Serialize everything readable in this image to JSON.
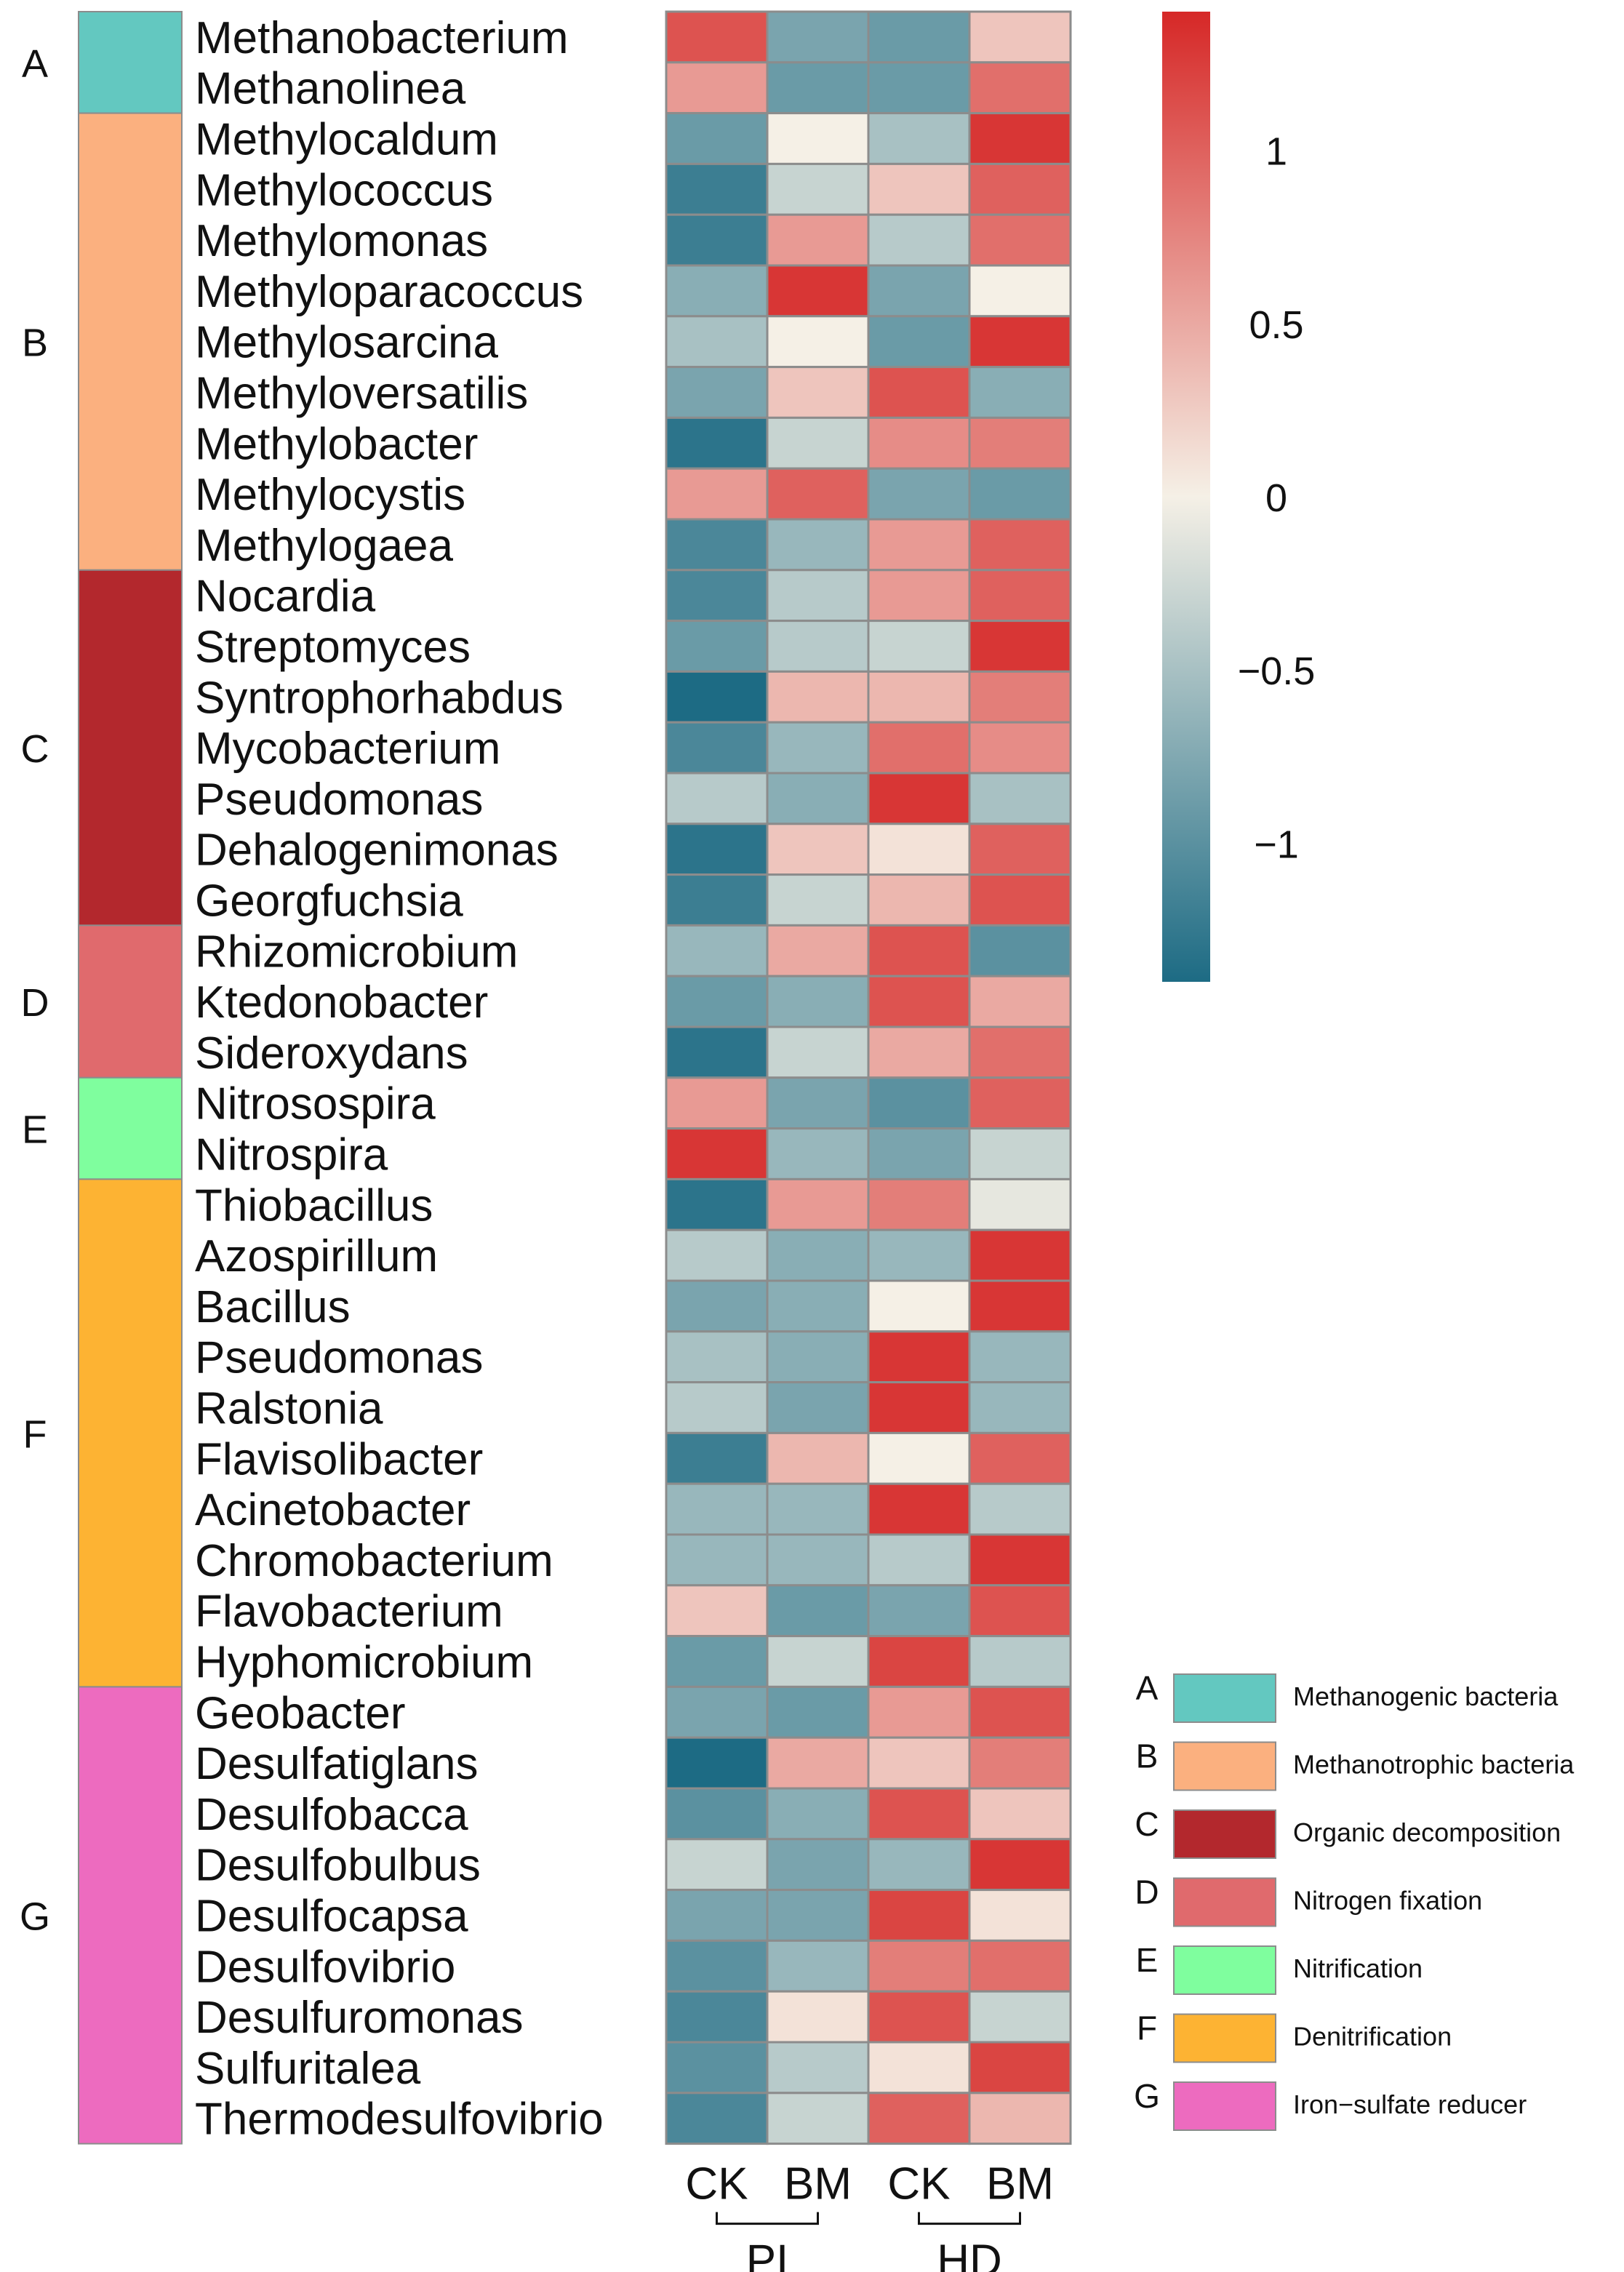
{
  "colors": {
    "low": "#1d6b84",
    "mid": "#f5f0e6",
    "high": "#d62827",
    "grid": "#8c8c8c"
  },
  "chart_data": {
    "type": "heatmap",
    "title": "",
    "columns": [
      "CK",
      "BM",
      "CK",
      "BM"
    ],
    "column_groups": [
      {
        "label": "PI",
        "columns": [
          0,
          1
        ]
      },
      {
        "label": "HD",
        "columns": [
          2,
          3
        ]
      }
    ],
    "rows": [
      "Methanobacterium",
      "Methanolinea",
      "Methylocaldum",
      "Methylococcus",
      "Methylomonas",
      "Methyloparacoccus",
      "Methylosarcina",
      "Methyloversatilis",
      "Methylobacter",
      "Methylocystis",
      "Methylogaea",
      "Nocardia",
      "Streptomyces",
      "Syntrophorhabdus",
      "Mycobacterium",
      "Pseudomonas",
      "Dehalogenimonas",
      "Georgfuchsia",
      "Rhizomicrobium",
      "Ktedonobacter",
      "Sideroxydans",
      "Nitrosospira",
      "Nitrospira",
      "Thiobacillus",
      "Azospirillum",
      "Bacillus",
      "Pseudomonas",
      "Ralstonia",
      "Flavisolibacter",
      "Acinetobacter",
      "Chromobacterium",
      "Flavobacterium",
      "Hyphomicrobium",
      "Geobacter",
      "Desulfatiglans",
      "Desulfobacca",
      "Desulfobulbus",
      "Desulfocapsa",
      "Desulfovibrio",
      "Desulfuromonas",
      "Sulfuritalea",
      "Thermodesulfovibrio"
    ],
    "row_groups": [
      {
        "key": "A",
        "label": "Methanogenic bacteria",
        "color": "#63c8c0",
        "count": 2
      },
      {
        "key": "B",
        "label": "Methanotrophic bacteria",
        "color": "#fbb07f",
        "count": 9
      },
      {
        "key": "C",
        "label": "Organic decomposition",
        "color": "#b3282d",
        "count": 7
      },
      {
        "key": "D",
        "label": "Nitrogen fixation",
        "color": "#e06a6d",
        "count": 3
      },
      {
        "key": "E",
        "label": "Nitrification",
        "color": "#7ffe9e",
        "count": 2
      },
      {
        "key": "F",
        "label": "Denitrification",
        "color": "#fdb333",
        "count": 10
      },
      {
        "key": "G",
        "label": "Iron−sulfate reducer",
        "color": "#ed6bbf",
        "count": 9
      }
    ],
    "values": [
      [
        1.1,
        -0.8,
        -0.9,
        0.3
      ],
      [
        0.6,
        -0.9,
        -0.9,
        0.9
      ],
      [
        -0.9,
        0.0,
        -0.5,
        1.3
      ],
      [
        -1.2,
        -0.3,
        0.3,
        1.0
      ],
      [
        -1.2,
        0.6,
        -0.4,
        0.9
      ],
      [
        -0.7,
        1.3,
        -0.8,
        0.0
      ],
      [
        -0.5,
        0.0,
        -0.9,
        1.3
      ],
      [
        -0.8,
        0.3,
        1.1,
        -0.7
      ],
      [
        -1.3,
        -0.3,
        0.7,
        0.8
      ],
      [
        0.6,
        1.0,
        -0.8,
        -0.9
      ],
      [
        -1.1,
        -0.6,
        0.6,
        1.0
      ],
      [
        -1.1,
        -0.4,
        0.6,
        1.0
      ],
      [
        -0.9,
        -0.4,
        -0.3,
        1.3
      ],
      [
        -1.4,
        0.4,
        0.4,
        0.8
      ],
      [
        -1.1,
        -0.6,
        0.9,
        0.7
      ],
      [
        -0.4,
        -0.7,
        1.3,
        -0.5
      ],
      [
        -1.3,
        0.3,
        0.1,
        1.0
      ],
      [
        -1.2,
        -0.3,
        0.4,
        1.1
      ],
      [
        -0.6,
        0.5,
        1.1,
        -1.0
      ],
      [
        -0.9,
        -0.7,
        1.1,
        0.5
      ],
      [
        -1.3,
        -0.3,
        0.5,
        0.9
      ],
      [
        0.6,
        -0.8,
        -1.0,
        1.0
      ],
      [
        1.3,
        -0.6,
        -0.8,
        -0.3
      ],
      [
        -1.3,
        0.6,
        0.8,
        -0.1
      ],
      [
        -0.4,
        -0.7,
        -0.6,
        1.3
      ],
      [
        -0.8,
        -0.7,
        0.0,
        1.3
      ],
      [
        -0.5,
        -0.7,
        1.3,
        -0.6
      ],
      [
        -0.4,
        -0.8,
        1.3,
        -0.6
      ],
      [
        -1.2,
        0.4,
        0.0,
        1.0
      ],
      [
        -0.6,
        -0.6,
        1.3,
        -0.4
      ],
      [
        -0.6,
        -0.6,
        -0.4,
        1.3
      ],
      [
        0.3,
        -0.9,
        -0.8,
        1.1
      ],
      [
        -0.9,
        -0.3,
        1.2,
        -0.4
      ],
      [
        -0.8,
        -0.9,
        0.6,
        1.1
      ],
      [
        -1.4,
        0.5,
        0.3,
        0.8
      ],
      [
        -1.0,
        -0.7,
        1.1,
        0.3
      ],
      [
        -0.3,
        -0.8,
        -0.6,
        1.3
      ],
      [
        -0.8,
        -0.8,
        1.2,
        0.1
      ],
      [
        -1.0,
        -0.6,
        0.8,
        0.9
      ],
      [
        -1.1,
        0.1,
        1.1,
        -0.3
      ],
      [
        -1.0,
        -0.4,
        0.1,
        1.2
      ],
      [
        -1.1,
        -0.3,
        1.0,
        0.4
      ]
    ],
    "colorbar": {
      "range": [
        -1.4,
        1.4
      ],
      "ticks": [
        1,
        0.5,
        0,
        -0.5,
        -1
      ],
      "tick_labels": [
        "1",
        "0.5",
        "0",
        "−0.5",
        "−1"
      ]
    },
    "legend_position": "bottom-right"
  }
}
